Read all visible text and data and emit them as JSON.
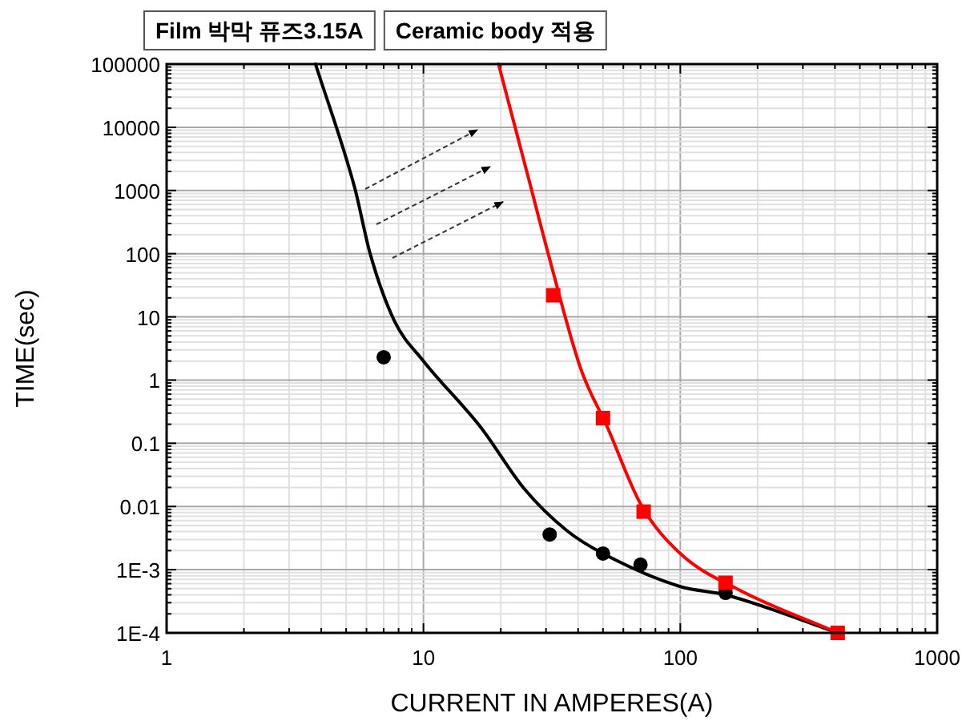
{
  "chart_data": {
    "type": "line",
    "xlabel": "CURRENT IN AMPERES(A)",
    "ylabel": "TIME(sec)",
    "annotations": [
      "Film 박막 퓨즈3.15A",
      "Ceramic body 적용"
    ],
    "log": "xy",
    "xlim": [
      1,
      1000
    ],
    "ylim": [
      0.0001,
      100000
    ],
    "xticks": [
      1,
      10,
      100,
      1000
    ],
    "yticks": [
      {
        "value": 0.0001,
        "label": "1E-4"
      },
      {
        "value": 0.001,
        "label": "1E-3"
      },
      0.01,
      0.1,
      1,
      10,
      100,
      1000,
      10000,
      100000
    ],
    "grid": true,
    "series": [
      {
        "color": "#000000",
        "marker": "none",
        "x": [
          3.8,
          5.4,
          6.2,
          7.7,
          10,
          16.7,
          24.7,
          36.3,
          50,
          100,
          150,
          411
        ],
        "values": [
          100000,
          1100,
          100,
          8.7,
          2,
          0.18,
          0.019,
          0.0041,
          0.0018,
          0.00054,
          0.0004,
          0.0001
        ]
      },
      {
        "color": "#ff0000",
        "marker": "none",
        "x": [
          19.6,
          26,
          30.6,
          41,
          52,
          70,
          100,
          171,
          411
        ],
        "values": [
          100000,
          1260,
          100,
          1.5,
          0.18,
          0.011,
          0.0018,
          0.00047,
          0.0001
        ]
      },
      {
        "type": "scatter",
        "color": "#000000",
        "marker": "circle",
        "x": [
          7,
          31,
          50,
          70,
          150
        ],
        "values": [
          2.3,
          0.0036,
          0.0018,
          0.0012,
          0.00043
        ]
      },
      {
        "type": "scatter",
        "color": "#ff0000",
        "marker": "square",
        "x": [
          32,
          50,
          72,
          150,
          410
        ],
        "values": [
          22,
          0.25,
          0.0083,
          0.00062,
          0.0001
        ]
      }
    ]
  }
}
